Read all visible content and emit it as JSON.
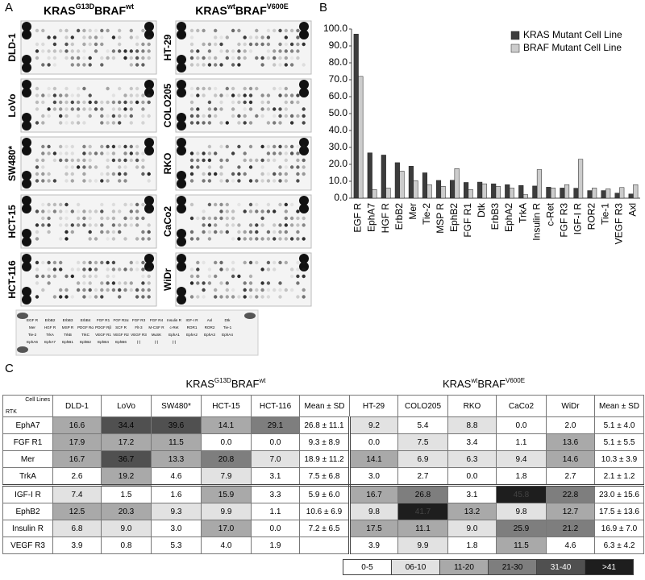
{
  "panel_a": {
    "label": "A",
    "left_header": {
      "gene1": "KRAS",
      "allele1": "G13D",
      "gene2": "BRAF",
      "allele2": "wt"
    },
    "right_header": {
      "gene1": "KRAS",
      "allele1": "wt",
      "gene2": "BRAF",
      "allele2": "V600E"
    },
    "left_lines": [
      "DLD-1",
      "LoVo",
      "SW480*",
      "HCT-15",
      "HCT-116"
    ],
    "right_lines": [
      "HT-29",
      "COLO205",
      "RKO",
      "CaCo2",
      "WiDr"
    ],
    "key": [
      [
        "EGF R",
        "ErbB2",
        "ErbB3",
        "ErbB4",
        "FGF R1",
        "FGF R2α",
        "FGF R3",
        "FGF R4",
        "Insulin R",
        "IGF-I R",
        "Axl",
        "Dtk"
      ],
      [
        "Mer",
        "HGF R",
        "MSP R",
        "PDGF Rα",
        "PDGF Rβ",
        "SCF R",
        "Flt-3",
        "M-CSF R",
        "c-Ret",
        "ROR1",
        "ROR2",
        "Tie-1"
      ],
      [
        "Tie-2",
        "TrkA",
        "TrkB",
        "TrkC",
        "VEGF R1",
        "VEGF R2",
        "VEGF R3",
        "MuSK",
        "EphA1",
        "EphA2",
        "EphA3",
        "EphA4"
      ],
      [
        "EphA6",
        "EphA7",
        "EphB1",
        "EphB2",
        "EphB4",
        "EphB6",
        "(-)",
        "(-)",
        "(-)"
      ]
    ]
  },
  "chart_data": {
    "type": "bar",
    "panel_label": "B",
    "categories": [
      "EGF R",
      "EphA7",
      "HGF R",
      "ErbB2",
      "Mer",
      "Tie-2",
      "MSP R",
      "EphB2",
      "FGF R1",
      "Dtk",
      "ErbB3",
      "EphA2",
      "TrkA",
      "Insulin R",
      "c-Ret",
      "FGF R3",
      "IGF-I R",
      "ROR2",
      "Tie-1",
      "VEGF R3",
      "Axl"
    ],
    "series": [
      {
        "name": "KRAS Mutant Cell Line",
        "color": "#3c3c3c",
        "values": [
          97,
          26.8,
          25.5,
          21,
          18.9,
          15,
          10.5,
          10.6,
          9.3,
          9.5,
          8.5,
          8,
          7.5,
          7.2,
          6.5,
          6,
          5.9,
          4.5,
          4.5,
          3,
          2.5
        ]
      },
      {
        "name": "BRAF Mutant Cell Line",
        "color": "#cccccc",
        "values": [
          72,
          5.1,
          6,
          16,
          10.3,
          8,
          7,
          17.5,
          5.1,
          8.5,
          7,
          6,
          2.1,
          16.9,
          6,
          8,
          23,
          6,
          5.5,
          6.3,
          8
        ]
      }
    ],
    "ylim": [
      0,
      100
    ],
    "yticks": [
      {
        "value": 0,
        "label": "0.0"
      },
      {
        "value": 10,
        "label": "10.0"
      },
      {
        "value": 20,
        "label": "20.0"
      },
      {
        "value": 30,
        "label": "30.0"
      },
      {
        "value": 40,
        "label": "40.0"
      },
      {
        "value": 50,
        "label": "50.0"
      },
      {
        "value": 60,
        "label": "60.0"
      },
      {
        "value": 70,
        "label": "70.0"
      },
      {
        "value": 80,
        "label": "80.0"
      },
      {
        "value": 90,
        "label": "90.0"
      },
      {
        "value": 100,
        "label": "100.0"
      }
    ],
    "grid": false,
    "legend": "top-right"
  },
  "table": {
    "panel_label": "C",
    "corner": [
      "Cell Lines",
      "RTK"
    ],
    "groups": [
      {
        "gene1": "KRAS",
        "allele1": "G13D",
        "gene2": "BRAF",
        "allele2": "wt"
      },
      {
        "gene1": "KRAS",
        "allele1": "wt",
        "gene2": "BRAF",
        "allele2": "V600E"
      }
    ],
    "columns": [
      "DLD-1",
      "LoVo",
      "SW480*",
      "HCT-15",
      "HCT-116",
      "Mean ± SD",
      "HT-29",
      "COLO205",
      "RKO",
      "CaCo2",
      "WiDr",
      "Mean ± SD"
    ],
    "rows": [
      {
        "rtk": "EphA7",
        "cells": [
          "16.6",
          "34.4",
          "39.6",
          "14.1",
          "29.1",
          "26.8 ± 11.1",
          "9.2",
          "5.4",
          "8.8",
          "0.0",
          "2.0",
          "5.1 ± 4.0"
        ]
      },
      {
        "rtk": "FGF R1",
        "cells": [
          "17.9",
          "17.2",
          "11.5",
          "0.0",
          "0.0",
          "9.3 ± 8.9",
          "0.0",
          "7.5",
          "3.4",
          "1.1",
          "13.6",
          "5.1 ± 5.5"
        ]
      },
      {
        "rtk": "Mer",
        "cells": [
          "16.7",
          "36.7",
          "13.3",
          "20.8",
          "7.0",
          "18.9 ± 11.2",
          "14.1",
          "6.9",
          "6.3",
          "9.4",
          "14.6",
          "10.3 ± 3.9"
        ]
      },
      {
        "rtk": "TrkA",
        "cells": [
          "2.6",
          "19.2",
          "4.6",
          "7.9",
          "3.1",
          "7.5 ± 6.8",
          "3.0",
          "2.7",
          "0.0",
          "1.8",
          "2.7",
          "2.1 ± 1.2"
        ]
      },
      {
        "rtk": "IGF-I R",
        "cells": [
          "7.4",
          "1.5",
          "1.6",
          "15.9",
          "3.3",
          "5.9 ± 6.0",
          "16.7",
          "26.8",
          "3.1",
          "45.8",
          "22.8",
          "23.0 ± 15.6"
        ]
      },
      {
        "rtk": "EphB2",
        "cells": [
          "12.5",
          "20.3",
          "9.3",
          "9.9",
          "1.1",
          "10.6 ± 6.9",
          "9.8",
          "41.7",
          "13.2",
          "9.8",
          "12.7",
          "17.5 ± 13.6"
        ]
      },
      {
        "rtk": "Insulin R",
        "cells": [
          "6.8",
          "9.0",
          "3.0",
          "17.0",
          "0.0",
          "7.2 ± 6.5",
          "17.5",
          "11.1",
          "9.0",
          "25.9",
          "21.2",
          "16.9 ± 7.0"
        ]
      },
      {
        "rtk": "VEGF R3",
        "cells": [
          "3.9",
          "0.8",
          "5.3",
          "4.0",
          "1.9",
          null,
          "3.9",
          "9.9",
          "1.8",
          "11.5",
          "4.6",
          "6.3 ± 4.2"
        ]
      }
    ],
    "legend": [
      {
        "label": "0-5",
        "color": "#ffffff"
      },
      {
        "label": "06-10",
        "color": "#e2e2e2"
      },
      {
        "label": "11-20",
        "color": "#a9a9a9"
      },
      {
        "label": "21-30",
        "color": "#7e7e7e"
      },
      {
        "label": "31-40",
        "color": "#505050"
      },
      {
        "label": ">41",
        "color": "#1e1e1e"
      }
    ]
  }
}
